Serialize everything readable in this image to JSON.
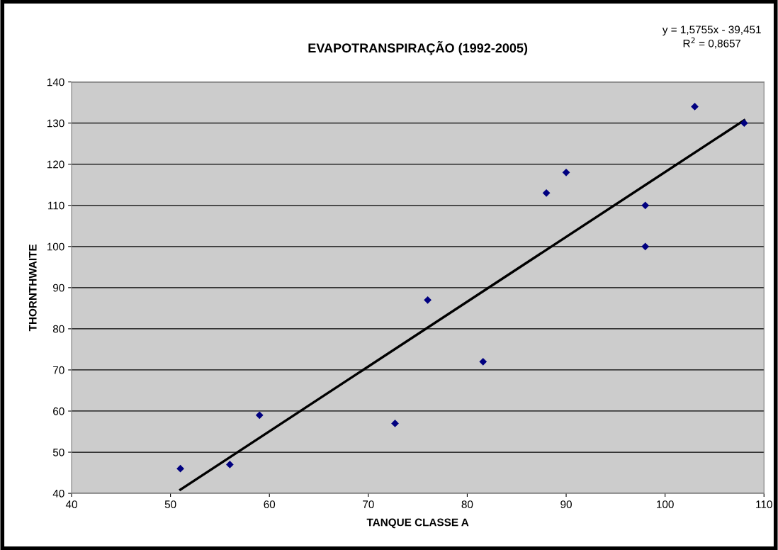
{
  "chart_data": {
    "type": "scatter",
    "title": "EVAPOTRANSPIRAÇÃO (1992-2005)",
    "xlabel": "TANQUE CLASSE A",
    "ylabel": "THORNTHWAITE",
    "annotations": [
      "y = 1,5755x - 39,451\nR$^{2}$ = 0,8657"
    ],
    "series": [
      {
        "color": "#000080",
        "marker": "diamond",
        "x": [
          51,
          56,
          59,
          72.7,
          76,
          81.6,
          88,
          90,
          98,
          98,
          103,
          108
        ],
        "values": [
          46,
          47,
          59,
          57,
          87,
          72,
          113,
          118,
          110,
          100,
          134,
          130
        ]
      },
      {
        "type": "line",
        "color": "#000000",
        "marker": "none",
        "line_style": "solid",
        "x": [
          51,
          108
        ],
        "values": [
          40.9,
          130.7
        ]
      }
    ],
    "xlim": [
      40,
      110
    ],
    "xticks": [
      40,
      50,
      60,
      70,
      80,
      90,
      100,
      110
    ],
    "ylim": [
      40,
      140
    ],
    "yticks": [
      40,
      50,
      60,
      70,
      80,
      90,
      100,
      110,
      120,
      130,
      140
    ],
    "grid": "y",
    "legend": false
  }
}
